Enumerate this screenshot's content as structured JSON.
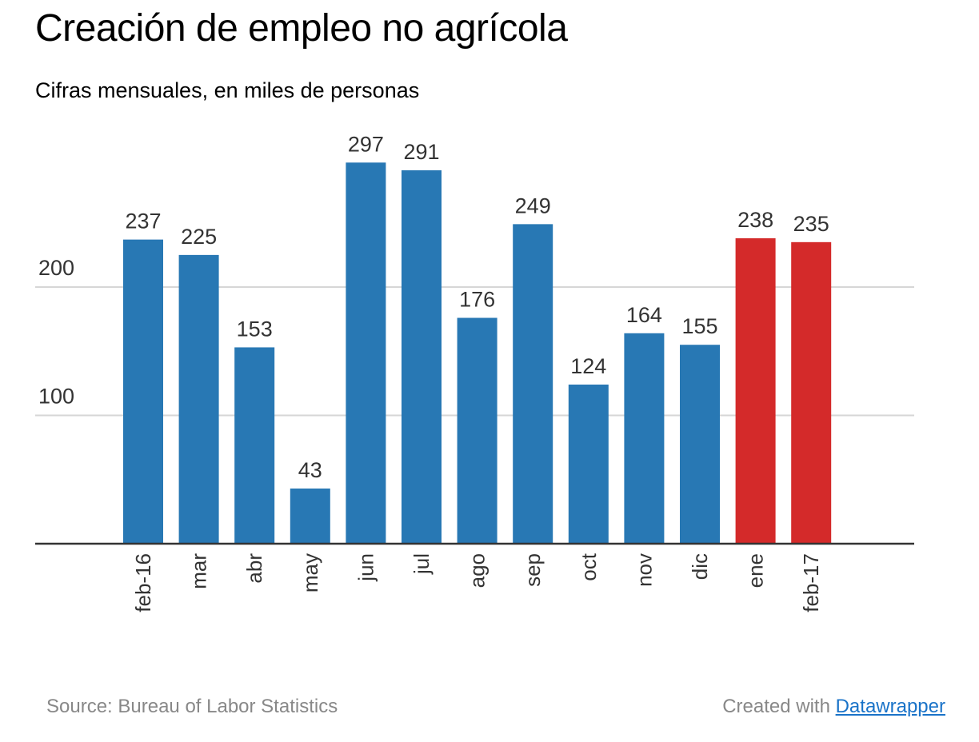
{
  "title": "Creación de empleo no agrícola",
  "subtitle": "Cifras mensuales, en miles de personas",
  "footer": {
    "source": "Source: Bureau of Labor Statistics",
    "credit_prefix": "Created with",
    "credit_link": "Datawrapper"
  },
  "colors": {
    "default_bar": "#2878b4",
    "highlight_bar": "#d42a2a",
    "gridline": "#d6d6d6",
    "axis": "#333333",
    "label_text": "#333333"
  },
  "chart_data": {
    "type": "bar",
    "title": "Creación de empleo no agrícola",
    "subtitle": "Cifras mensuales, en miles de personas",
    "categories": [
      "feb-16",
      "mar",
      "abr",
      "may",
      "jun",
      "jul",
      "ago",
      "sep",
      "oct",
      "nov",
      "dic",
      "ene",
      "feb-17"
    ],
    "values": [
      237,
      225,
      153,
      43,
      297,
      291,
      176,
      249,
      124,
      164,
      155,
      238,
      235
    ],
    "highlighted": [
      false,
      false,
      false,
      false,
      false,
      false,
      false,
      false,
      false,
      false,
      false,
      true,
      true
    ],
    "yticks": [
      100,
      200
    ],
    "ylim": [
      0,
      300
    ],
    "grid": true,
    "xlabel": "",
    "ylabel": ""
  }
}
